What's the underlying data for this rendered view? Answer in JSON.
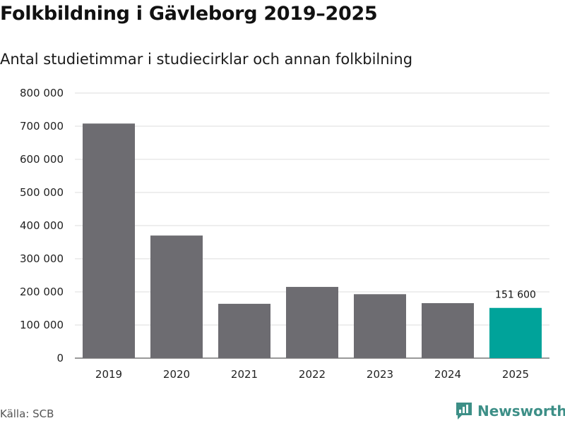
{
  "title": "Folkbildning i Gävleborg 2019–2025",
  "subtitle": "Antal studietimmar i studiecirklar och annan folkbilning",
  "source": "Källa: SCB",
  "brand": {
    "name": "Newsworthy",
    "icon": "newsworthy-logo-icon",
    "color": "#3d8f87"
  },
  "chart_data": {
    "type": "bar",
    "title": "Folkbildning i Gävleborg 2019–2025",
    "subtitle": "Antal studietimmar i studiecirklar och annan folkbilning",
    "xlabel": "",
    "ylabel": "",
    "categories": [
      "2019",
      "2020",
      "2021",
      "2022",
      "2023",
      "2024",
      "2025"
    ],
    "values": [
      708000,
      370000,
      164000,
      215000,
      193000,
      166000,
      151600
    ],
    "ylim": [
      0,
      800000
    ],
    "yticks": [
      0,
      100000,
      200000,
      300000,
      400000,
      500000,
      600000,
      700000,
      800000
    ],
    "ytick_labels": [
      "0",
      "100 000",
      "200 000",
      "300 000",
      "400 000",
      "500 000",
      "600 000",
      "700 000",
      "800 000"
    ],
    "grid": true,
    "bar_color": "#6d6c71",
    "highlight_color": "#00a39a",
    "highlight_index": 6,
    "annotations": [
      {
        "category": "2025",
        "text": "151 600"
      }
    ]
  }
}
